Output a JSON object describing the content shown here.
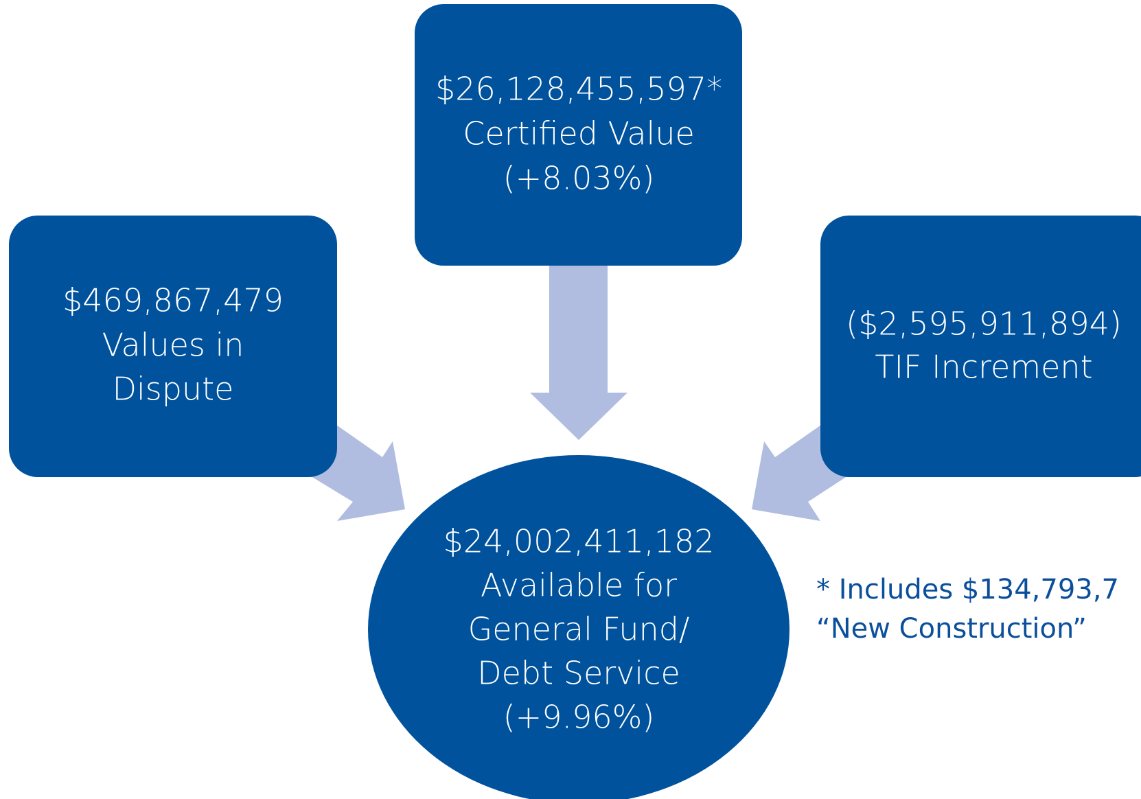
{
  "nodes": [
    {
      "lines": [
        "$26,128,455,597*",
        "Certified Value",
        "(+8.03%)"
      ]
    },
    {
      "lines": [
        "$469,867,479",
        "Values in",
        "Dispute"
      ]
    },
    {
      "lines": [
        "($2,595,911,894)",
        "TIF Increment"
      ]
    },
    {
      "lines": [
        "$24,002,411,182",
        "Available for",
        "General Fund/",
        "Debt Service",
        "(+9.96%)"
      ]
    }
  ],
  "footnote": [
    "* Includes $134,793,7",
    "“New Construction”"
  ]
}
